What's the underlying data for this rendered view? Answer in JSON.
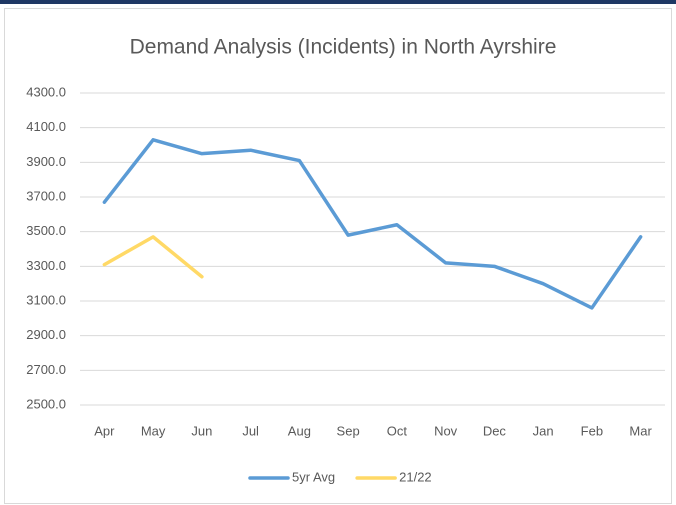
{
  "chart_data": {
    "type": "line",
    "title": "Demand Analysis (Incidents) in North Ayrshire",
    "categories": [
      "Apr",
      "May",
      "Jun",
      "Jul",
      "Aug",
      "Sep",
      "Oct",
      "Nov",
      "Dec",
      "Jan",
      "Feb",
      "Mar"
    ],
    "series": [
      {
        "name": "5yr Avg",
        "color": "#5b9bd5",
        "values": [
          3670,
          4030,
          3950,
          3970,
          3910,
          3480,
          3540,
          3320,
          3300,
          3200,
          3060,
          3470
        ]
      },
      {
        "name": "21/22",
        "color": "#ffd966",
        "values": [
          3310,
          3470,
          3240,
          null,
          null,
          null,
          null,
          null,
          null,
          null,
          null,
          null
        ]
      }
    ],
    "ylim": [
      2500,
      4300
    ],
    "yticks": [
      {
        "value": 2500,
        "label": "2500.0"
      },
      {
        "value": 2700,
        "label": "2700.0"
      },
      {
        "value": 2900,
        "label": "2900.0"
      },
      {
        "value": 3100,
        "label": "3100.0"
      },
      {
        "value": 3300,
        "label": "3300.0"
      },
      {
        "value": 3500,
        "label": "3500.0"
      },
      {
        "value": 3700,
        "label": "3700.0"
      },
      {
        "value": 3900,
        "label": "3900.0"
      },
      {
        "value": 4100,
        "label": "4100.0"
      },
      {
        "value": 4300,
        "label": "4300.0"
      }
    ],
    "grid": true,
    "legend": "bottom"
  }
}
